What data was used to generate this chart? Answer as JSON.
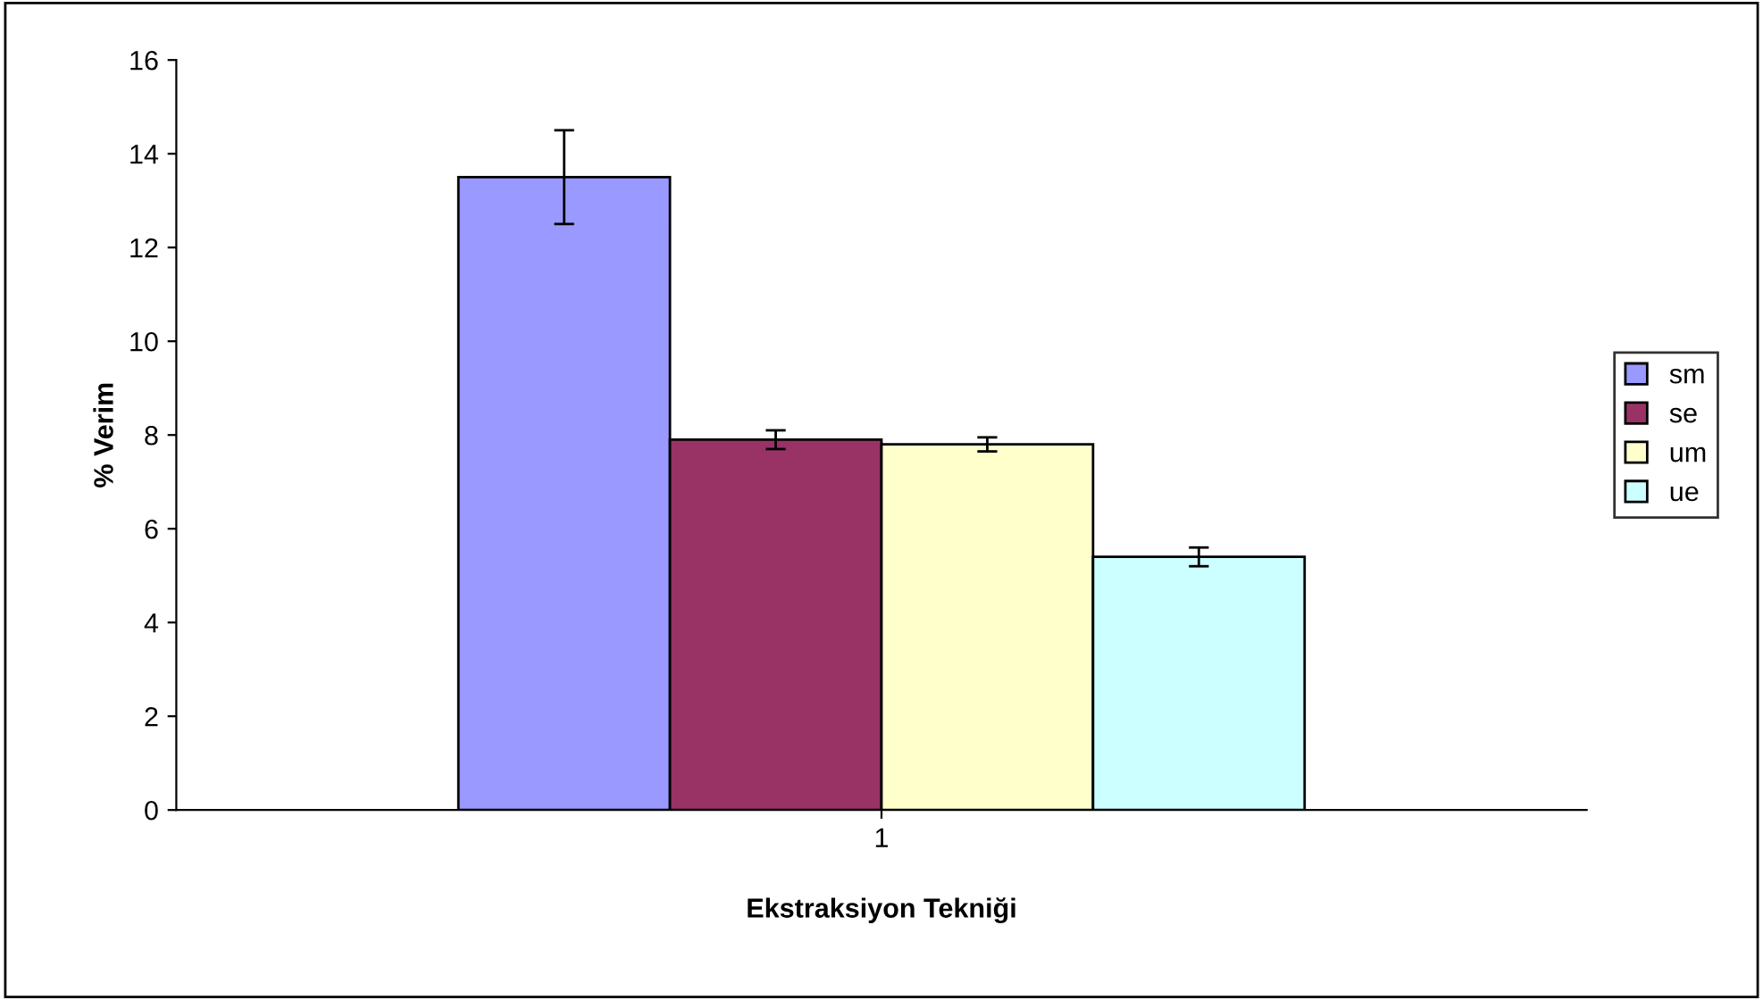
{
  "chart_data": {
    "type": "bar",
    "xlabel": "Ekstraksiyon Tekniği",
    "ylabel": "% Verim",
    "categories": [
      "1"
    ],
    "series": [
      {
        "name": "sm",
        "color": "#9999ff",
        "values": [
          13.5
        ],
        "errors": [
          1.0
        ]
      },
      {
        "name": "se",
        "color": "#993366",
        "values": [
          7.9
        ],
        "errors": [
          0.2
        ]
      },
      {
        "name": "um",
        "color": "#ffffcc",
        "values": [
          7.8
        ],
        "errors": [
          0.15
        ]
      },
      {
        "name": "ue",
        "color": "#ccffff",
        "values": [
          5.4
        ],
        "errors": [
          0.2
        ]
      }
    ],
    "ylim": [
      0,
      16
    ],
    "yticks": [
      0,
      2,
      4,
      6,
      8,
      10,
      12,
      14,
      16
    ],
    "grid": false,
    "legend": "right"
  }
}
